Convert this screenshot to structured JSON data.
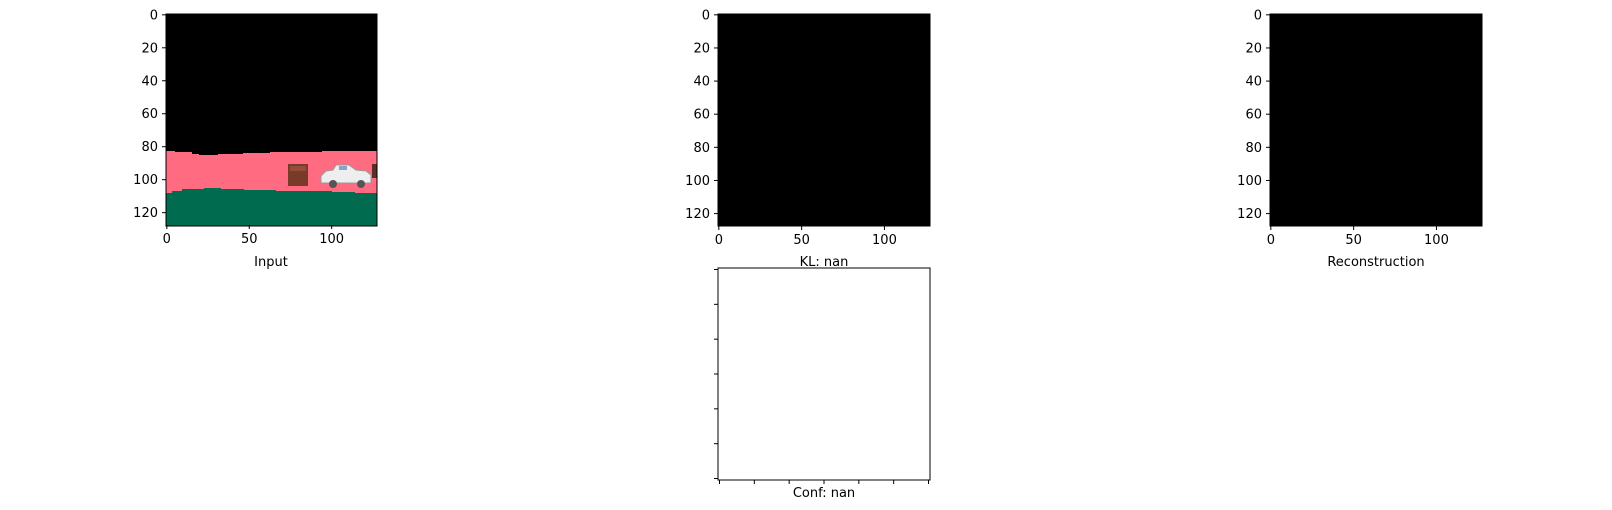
{
  "figure": {
    "panels": [
      {
        "id": "input",
        "xlabel": "Input"
      },
      {
        "id": "kl",
        "xlabel": "KL: nan"
      },
      {
        "id": "reconstruction",
        "xlabel": "Reconstruction"
      },
      {
        "id": "conf",
        "xlabel": "Conf: nan"
      }
    ]
  },
  "chart_data": [
    {
      "type": "heatmap",
      "title": "",
      "xlabel": "Input",
      "ylabel": "",
      "xlim": [
        0,
        127
      ],
      "ylim": [
        127,
        0
      ],
      "x_ticks": [
        0,
        50,
        100
      ],
      "y_ticks": [
        0,
        20,
        40,
        60,
        80,
        100,
        120
      ],
      "colors": {
        "sky": "#000000",
        "road": "#ff6b80",
        "ground": "#006b4f",
        "crate": "#7a3a2a",
        "car": "#e8e8e8"
      }
    },
    {
      "type": "heatmap",
      "title": "",
      "xlabel": "KL: nan",
      "ylabel": "",
      "xlim": [
        0,
        127
      ],
      "ylim": [
        127,
        0
      ],
      "x_ticks": [
        0,
        50,
        100
      ],
      "y_ticks": [
        0,
        20,
        40,
        60,
        80,
        100,
        120
      ],
      "colors": {
        "fill": "#000000"
      }
    },
    {
      "type": "heatmap",
      "title": "",
      "xlabel": "Reconstruction",
      "ylabel": "",
      "xlim": [
        0,
        127
      ],
      "ylim": [
        127,
        0
      ],
      "x_ticks": [
        0,
        50,
        100
      ],
      "y_ticks": [
        0,
        20,
        40,
        60,
        80,
        100,
        120
      ],
      "colors": {
        "fill": "#000000"
      }
    },
    {
      "type": "heatmap",
      "title": "",
      "xlabel": "Conf: nan",
      "ylabel": "",
      "x_ticks": [],
      "y_ticks": [],
      "x_tick_count": 7,
      "y_tick_count": 7,
      "colors": {
        "fill": "#ffffff"
      }
    }
  ]
}
